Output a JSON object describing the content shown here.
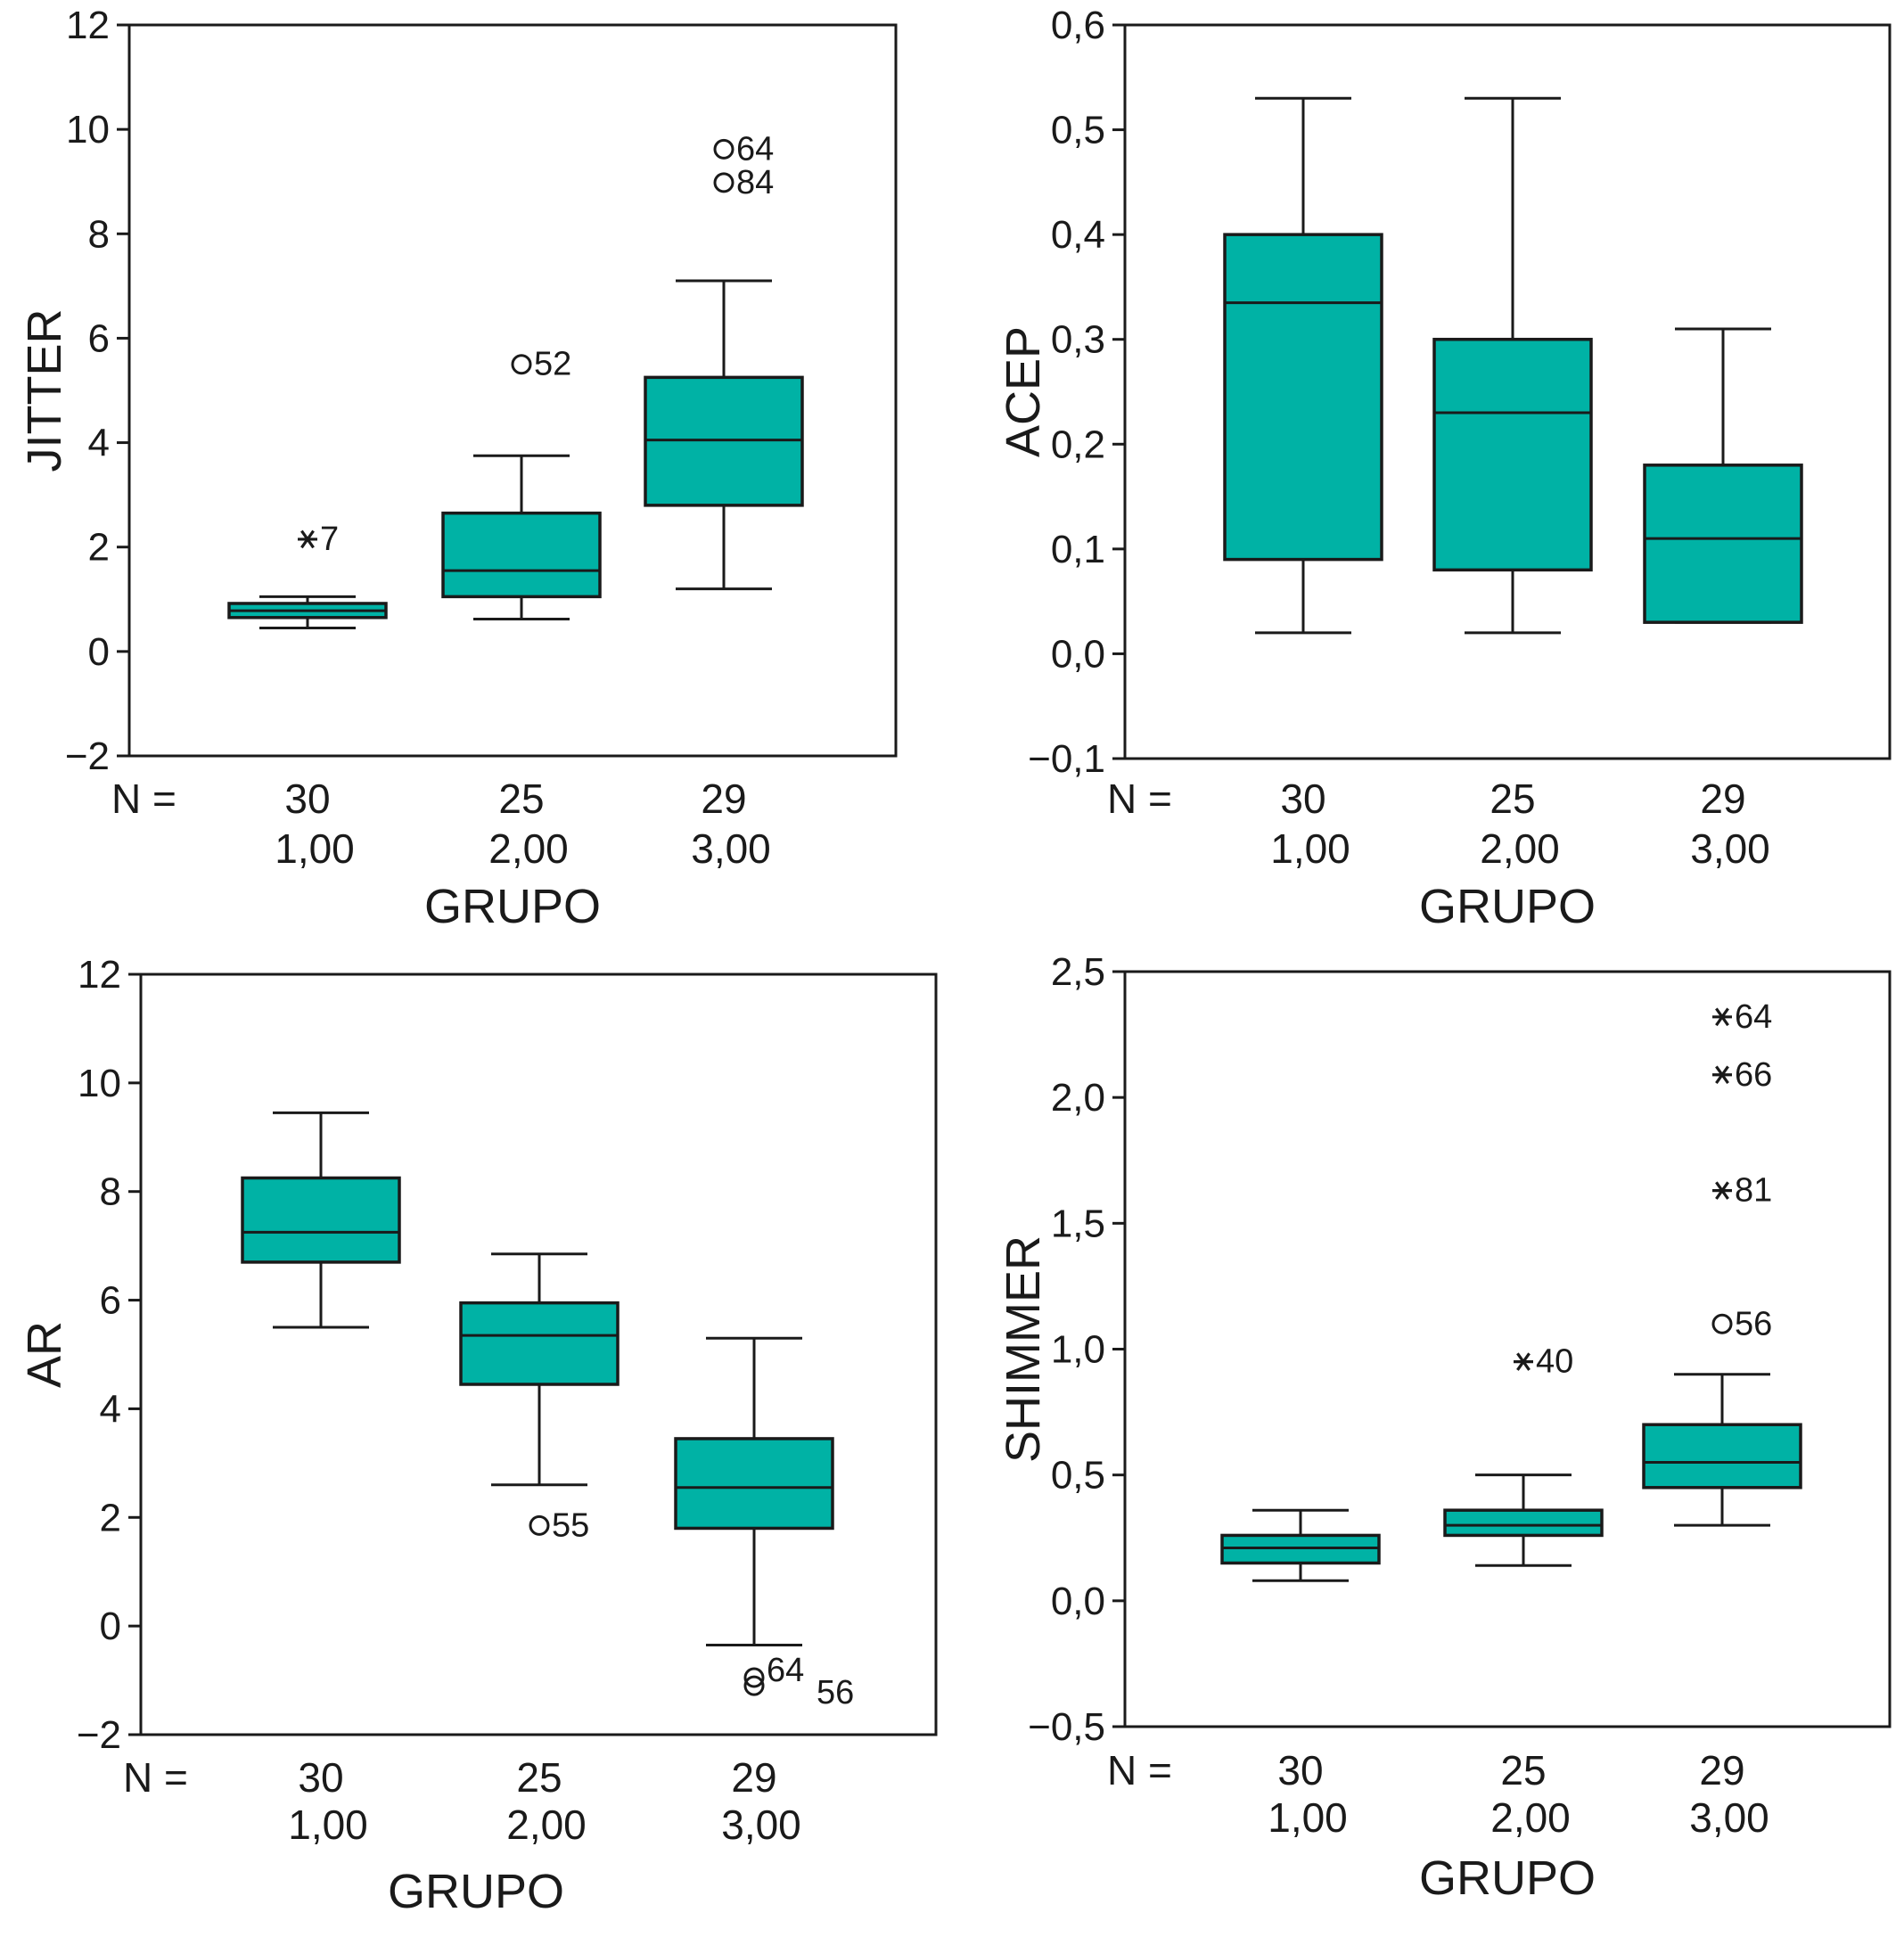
{
  "chart_data": [
    {
      "type": "box",
      "ylabel": "JITTER",
      "xlabel": "GRUPO",
      "n_prefix": "N =",
      "ylim": [
        -2,
        12
      ],
      "yticks": [
        -2,
        0,
        2,
        4,
        6,
        8,
        10,
        12
      ],
      "ytick_labels": [
        "−2",
        "0",
        "2",
        "4",
        "6",
        "8",
        "10",
        "12"
      ],
      "groups": [
        {
          "category": "1,00",
          "n": "30",
          "min": 0.45,
          "q1": 0.65,
          "median": 0.78,
          "q3": 0.92,
          "max": 1.05,
          "outliers": [
            {
              "value": 2.15,
              "label": "7",
              "marker": "star"
            }
          ]
        },
        {
          "category": "2,00",
          "n": "25",
          "min": 0.62,
          "q1": 1.05,
          "median": 1.55,
          "q3": 2.65,
          "max": 3.75,
          "outliers": [
            {
              "value": 5.5,
              "label": "52",
              "marker": "circle"
            }
          ]
        },
        {
          "category": "3,00",
          "n": "29",
          "min": 1.2,
          "q1": 2.8,
          "median": 4.05,
          "q3": 5.25,
          "max": 7.1,
          "outliers": [
            {
              "value": 9.62,
              "label": "64",
              "marker": "circle"
            },
            {
              "value": 8.98,
              "label": "84",
              "marker": "circle"
            }
          ]
        }
      ]
    },
    {
      "type": "box",
      "ylabel": "ACEP",
      "xlabel": "GRUPO",
      "n_prefix": "N =",
      "ylim": [
        -0.1,
        0.6
      ],
      "yticks": [
        -0.1,
        0.0,
        0.1,
        0.2,
        0.3,
        0.4,
        0.5,
        0.6
      ],
      "ytick_labels": [
        "−0,1",
        "0,0",
        "0,1",
        "0,2",
        "0,3",
        "0,4",
        "0,5",
        "0,6"
      ],
      "groups": [
        {
          "category": "1,00",
          "n": "30",
          "min": 0.02,
          "q1": 0.09,
          "median": 0.335,
          "q3": 0.4,
          "max": 0.53,
          "outliers": []
        },
        {
          "category": "2,00",
          "n": "25",
          "min": 0.02,
          "q1": 0.08,
          "median": 0.23,
          "q3": 0.3,
          "max": 0.53,
          "outliers": []
        },
        {
          "category": "3,00",
          "n": "29",
          "min": 0.03,
          "q1": 0.03,
          "median": 0.11,
          "q3": 0.18,
          "max": 0.31,
          "outliers": []
        }
      ]
    },
    {
      "type": "box",
      "ylabel": "AR",
      "xlabel": "GRUPO",
      "n_prefix": "N =",
      "ylim": [
        -2,
        12
      ],
      "yticks": [
        -2,
        0,
        2,
        4,
        6,
        8,
        10,
        12
      ],
      "ytick_labels": [
        "−2",
        "0",
        "2",
        "4",
        "6",
        "8",
        "10",
        "12"
      ],
      "groups": [
        {
          "category": "1,00",
          "n": "30",
          "min": 5.5,
          "q1": 6.7,
          "median": 7.25,
          "q3": 8.25,
          "max": 9.45,
          "outliers": []
        },
        {
          "category": "2,00",
          "n": "25",
          "min": 2.6,
          "q1": 4.45,
          "median": 5.35,
          "q3": 5.95,
          "max": 6.85,
          "outliers": [
            {
              "value": 1.85,
              "label": "55",
              "marker": "circle"
            }
          ]
        },
        {
          "category": "3,00",
          "n": "29",
          "min": -0.35,
          "q1": 1.8,
          "median": 2.55,
          "q3": 3.45,
          "max": 5.3,
          "outliers": [
            {
              "value": -0.95,
              "label": "64",
              "marker": "circle"
            },
            {
              "value": -1.1,
              "label": "56",
              "marker": "circle"
            }
          ]
        }
      ]
    },
    {
      "type": "box",
      "ylabel": "SHIMMER",
      "xlabel": "GRUPO",
      "n_prefix": "N =",
      "ylim": [
        -0.5,
        2.5
      ],
      "yticks": [
        -0.5,
        0.0,
        0.5,
        1.0,
        1.5,
        2.0,
        2.5
      ],
      "ytick_labels": [
        "−0,5",
        "0,0",
        "0,5",
        "1,0",
        "1,5",
        "2,0",
        "2,5"
      ],
      "groups": [
        {
          "category": "1,00",
          "n": "30",
          "min": 0.08,
          "q1": 0.15,
          "median": 0.21,
          "q3": 0.26,
          "max": 0.36,
          "outliers": []
        },
        {
          "category": "2,00",
          "n": "25",
          "min": 0.14,
          "q1": 0.26,
          "median": 0.3,
          "q3": 0.36,
          "max": 0.5,
          "outliers": [
            {
              "value": 0.95,
              "label": "40",
              "marker": "star"
            }
          ]
        },
        {
          "category": "3,00",
          "n": "29",
          "min": 0.3,
          "q1": 0.45,
          "median": 0.55,
          "q3": 0.7,
          "max": 0.9,
          "outliers": [
            {
              "value": 2.32,
              "label": "64",
              "marker": "star"
            },
            {
              "value": 2.09,
              "label": "66",
              "marker": "star"
            },
            {
              "value": 1.63,
              "label": "81",
              "marker": "star"
            },
            {
              "value": 1.1,
              "label": "56",
              "marker": "circle"
            }
          ]
        }
      ]
    }
  ],
  "colors": {
    "box_fill": "#00b2a5",
    "stroke": "#1a1a1a",
    "background": "#ffffff"
  }
}
